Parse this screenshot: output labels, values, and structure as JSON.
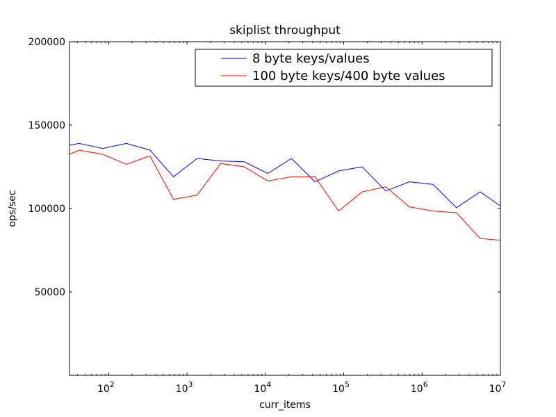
{
  "chart_data": {
    "type": "line",
    "title": "skiplist throughput",
    "xlabel": "curr_items",
    "ylabel": "ops/sec",
    "xscale": "log",
    "xlim": [
      31.6,
      10000000
    ],
    "ylim": [
      0,
      200000
    ],
    "yticks": [
      50000,
      100000,
      150000,
      200000
    ],
    "yticklabels": [
      "50000",
      "100000",
      "150000",
      "200000"
    ],
    "xticks": [
      100,
      1000,
      10000,
      100000,
      1000000,
      10000000
    ],
    "xtick_base": "10",
    "xtick_exponents": [
      "2",
      "3",
      "4",
      "5",
      "6",
      "7"
    ],
    "grid": false,
    "legend_position": "top-right",
    "series": [
      {
        "name": "8 byte keys/values",
        "color": "#0000ff",
        "x": [
          31.6,
          42,
          84,
          168,
          336,
          672,
          1344,
          2688,
          5376,
          10752,
          21504,
          43008,
          86016,
          172032,
          344064,
          688128,
          1376256,
          2752512,
          5505024,
          10000000
        ],
        "y": [
          138000,
          139000,
          136000,
          139000,
          135000,
          119000,
          130000,
          128500,
          128000,
          121000,
          130000,
          116000,
          122500,
          125000,
          110500,
          116000,
          114500,
          100500,
          110000,
          101500
        ]
      },
      {
        "name": "100 byte keys/400 byte values",
        "color": "#ff0000",
        "x": [
          31.6,
          42,
          84,
          168,
          336,
          672,
          1344,
          2688,
          5376,
          10752,
          21504,
          43008,
          86016,
          172032,
          344064,
          688128,
          1376256,
          2752512,
          5505024,
          10000000
        ],
        "y": [
          132500,
          135000,
          132500,
          126500,
          131500,
          105500,
          108000,
          127000,
          125000,
          116500,
          119000,
          119000,
          98500,
          110000,
          113000,
          101000,
          98500,
          97500,
          82000,
          81000
        ]
      }
    ]
  }
}
